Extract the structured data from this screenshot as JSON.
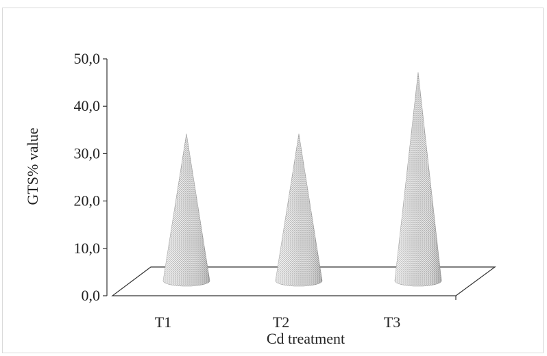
{
  "chart_data": {
    "type": "bar",
    "bar_shape": "cone",
    "categories": [
      "T1",
      "T2",
      "T3"
    ],
    "series": [
      {
        "values": [
          31.0,
          31.0,
          44.0
        ]
      }
    ],
    "title": "",
    "xlabel": "Cd treatment",
    "ylabel": "GTS% value",
    "ylim": [
      0,
      50
    ],
    "yticks": [
      "0,0",
      "10,0",
      "20,0",
      "30,0",
      "40,0",
      "50,0"
    ],
    "grid": false,
    "legend": "none",
    "colors": {
      "axis": "#333333",
      "cone_fill": "#e3e3e3",
      "cone_stipple": "#8a8a8a"
    }
  }
}
